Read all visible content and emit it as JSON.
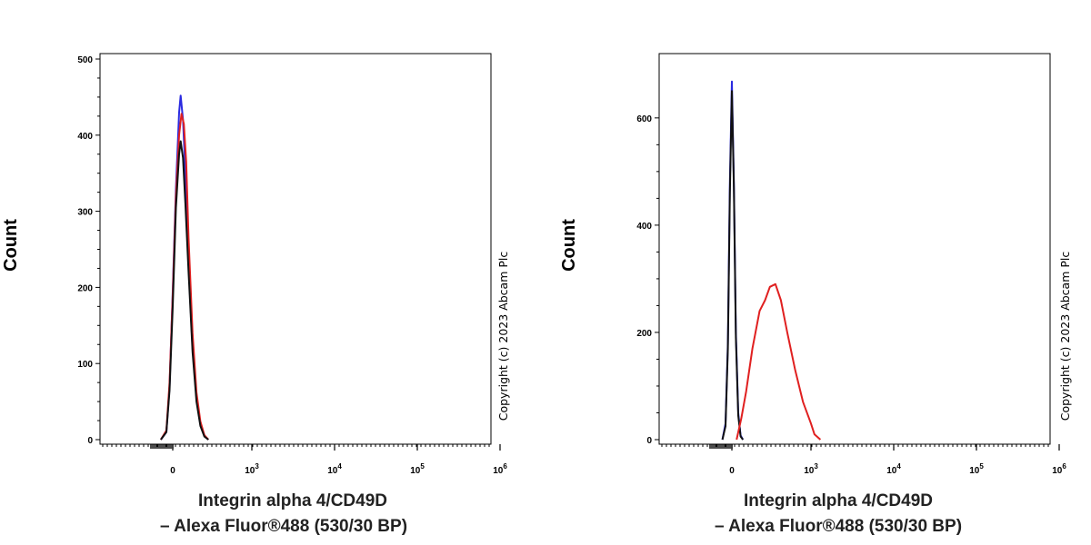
{
  "chart_data": [
    {
      "type": "line",
      "xlabel": [
        "Integrin alpha 4/CD49D",
        "– Alexa Fluor®488 (530/30 BP)"
      ],
      "ylabel": "Count",
      "copyright": "Copyright (c) 2023 Abcam Plc",
      "x_scale": "biexponential",
      "x_ticks": [
        {
          "value": 0,
          "base": "0",
          "exp": ""
        },
        {
          "value": 1000,
          "base": "10",
          "exp": "3"
        },
        {
          "value": 10000,
          "base": "10",
          "exp": "4"
        },
        {
          "value": 100000,
          "base": "10",
          "exp": "5"
        },
        {
          "value": 1000000,
          "base": "10",
          "exp": "6"
        }
      ],
      "y_ticks": [
        0,
        100,
        200,
        300,
        400,
        500
      ],
      "ylim": [
        0,
        500
      ],
      "grid": false,
      "series": [
        {
          "color": "#2a2ae0",
          "x": [
            -150,
            -80,
            -40,
            0,
            40,
            80,
            100,
            130,
            160,
            200,
            250,
            300,
            350,
            400,
            450
          ],
          "y": [
            0,
            10,
            70,
            195,
            330,
            430,
            452,
            420,
            350,
            230,
            120,
            55,
            20,
            5,
            0
          ]
        },
        {
          "color": "#e02020",
          "x": [
            -150,
            -80,
            -40,
            0,
            40,
            80,
            110,
            140,
            170,
            200,
            250,
            300,
            350,
            400,
            450
          ],
          "y": [
            0,
            12,
            75,
            190,
            320,
            400,
            428,
            415,
            365,
            265,
            140,
            62,
            24,
            6,
            0
          ]
        },
        {
          "color": "#111111",
          "x": [
            -150,
            -80,
            -40,
            0,
            40,
            80,
            100,
            130,
            160,
            200,
            250,
            300,
            350,
            400,
            450
          ],
          "y": [
            0,
            10,
            65,
            175,
            305,
            375,
            392,
            370,
            310,
            220,
            115,
            50,
            18,
            4,
            0
          ]
        }
      ]
    },
    {
      "type": "line",
      "xlabel": [
        "Integrin alpha 4/CD49D",
        "– Alexa Fluor®488 (530/30 BP)"
      ],
      "ylabel": "Count",
      "copyright": "Copyright (c) 2023 Abcam Plc",
      "x_scale": "biexponential",
      "x_ticks": [
        {
          "value": 0,
          "base": "0",
          "exp": ""
        },
        {
          "value": 1000,
          "base": "10",
          "exp": "3"
        },
        {
          "value": 10000,
          "base": "10",
          "exp": "4"
        },
        {
          "value": 100000,
          "base": "10",
          "exp": "5"
        },
        {
          "value": 1000000,
          "base": "10",
          "exp": "6"
        }
      ],
      "y_ticks": [
        0,
        200,
        400,
        600
      ],
      "ylim": [
        0,
        720
      ],
      "grid": false,
      "series": [
        {
          "color": "#2a2ae0",
          "x": [
            -120,
            -80,
            -50,
            -25,
            0,
            25,
            50,
            80,
            110,
            140
          ],
          "y": [
            0,
            30,
            180,
            480,
            668,
            480,
            200,
            50,
            8,
            0
          ]
        },
        {
          "color": "#111111",
          "x": [
            -120,
            -80,
            -50,
            -25,
            0,
            25,
            50,
            80,
            110,
            140
          ],
          "y": [
            0,
            25,
            170,
            460,
            650,
            470,
            190,
            45,
            6,
            0
          ]
        },
        {
          "color": "#e02020",
          "x": [
            60,
            120,
            180,
            260,
            350,
            420,
            480,
            550,
            620,
            700,
            800,
            900,
            1000,
            1100,
            1300
          ],
          "y": [
            0,
            40,
            90,
            170,
            240,
            260,
            285,
            290,
            260,
            200,
            130,
            70,
            30,
            10,
            0
          ]
        }
      ]
    }
  ]
}
